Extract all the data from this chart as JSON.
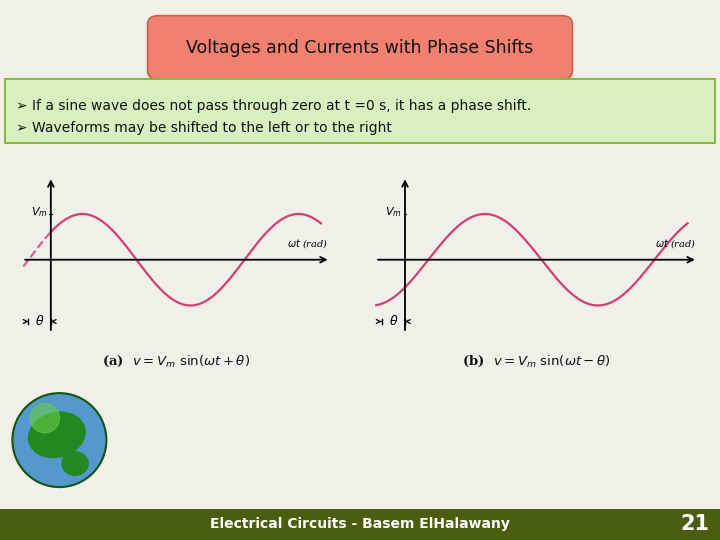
{
  "title": "Voltages and Currents with Phase Shifts",
  "title_bg": "#f08070",
  "title_border": "#d06050",
  "bullet1": " If a sine wave does not pass through zero at t =0 s, it has a phase shift.",
  "bullet2": " Waveforms may be shifted to the left or to the right",
  "bullet_bg": "#d8f0c0",
  "bullet_border": "#88bb44",
  "footer_text": "Electrical Circuits - Basem ElHalawany",
  "footer_bar_color": "#4a5e10",
  "page_number": "21",
  "bg_color": "#f0f0e8",
  "sine_color": "#d04070",
  "axis_color": "#000000",
  "label_a": "(a)  $v = V_m\\ \\sin(\\omega t + \\theta)$",
  "label_b": "(b)  $v = V_m\\ \\sin(\\omega t - \\theta)$",
  "phase_shift": 0.65
}
